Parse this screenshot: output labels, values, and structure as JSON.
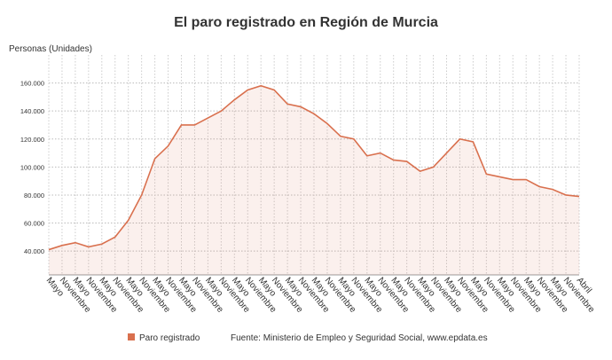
{
  "chart_data": {
    "type": "area",
    "title": "El paro registrado en Región de Murcia",
    "y_label": "Personas (Unidades)",
    "source": "Fuente: Ministerio de Empleo y Seguridad Social, www.epdata.es",
    "categories": [
      "Mayo",
      "Noviembre",
      "Mayo",
      "Noviembre",
      "Mayo",
      "Noviembre",
      "Mayo",
      "Noviembre",
      "Mayo",
      "Noviembre",
      "Mayo",
      "Noviembre",
      "Mayo",
      "Noviembre",
      "Mayo",
      "Noviembre",
      "Mayo",
      "Noviembre",
      "Mayo",
      "Noviembre",
      "Mayo",
      "Noviembre",
      "Mayo",
      "Noviembre",
      "Mayo",
      "Noviembre",
      "Mayo",
      "Noviembre",
      "Mayo",
      "Noviembre",
      "Mayo",
      "Noviembre",
      "Mayo",
      "Noviembre",
      "Mayo",
      "Noviembre",
      "Mayo",
      "Noviembre",
      "Mayo",
      "Noviembre",
      "Abril"
    ],
    "series": [
      {
        "name": "Paro registrado",
        "color": "#d9704e",
        "values": [
          41000,
          44000,
          46000,
          43000,
          45000,
          50000,
          62000,
          80000,
          106000,
          115000,
          130000,
          130000,
          135000,
          140000,
          148000,
          155000,
          158000,
          155000,
          145000,
          143000,
          138000,
          131000,
          122000,
          120000,
          108000,
          110000,
          105000,
          104000,
          97000,
          100000,
          110000,
          120000,
          118000,
          95000,
          93000,
          91000,
          91000,
          86000,
          84000,
          80000,
          79000
        ]
      }
    ],
    "ylim": [
      23000,
      180000
    ],
    "yticks": [
      {
        "value": 40000,
        "label": "40.000"
      },
      {
        "value": 60000,
        "label": "60.000"
      },
      {
        "value": 80000,
        "label": "80.000"
      },
      {
        "value": 100000,
        "label": "100.000"
      },
      {
        "value": 120000,
        "label": "120.000"
      },
      {
        "value": 140000,
        "label": "140.000"
      },
      {
        "value": 160000,
        "label": "160.000"
      }
    ],
    "grid": true
  }
}
